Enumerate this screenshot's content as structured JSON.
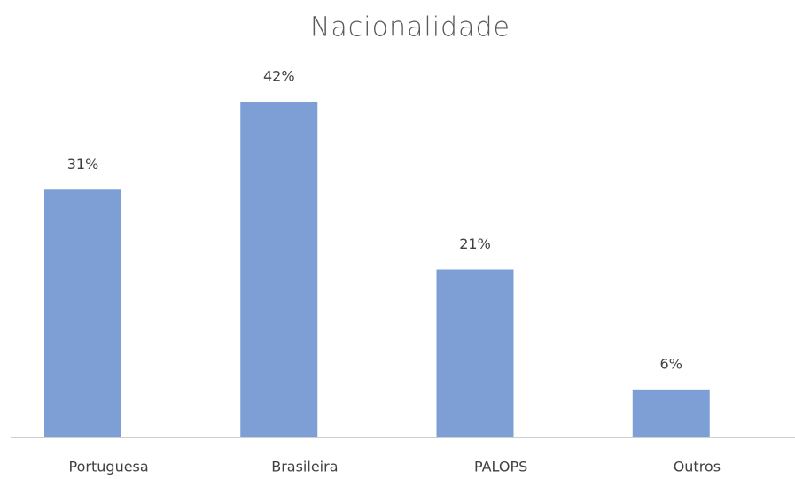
{
  "chart_data": {
    "type": "bar",
    "title": "Nacionalidade",
    "categories": [
      "Portuguesa",
      "Brasileira",
      "PALOPS",
      "Outros"
    ],
    "values": [
      31,
      42,
      21,
      6
    ],
    "value_labels": [
      "31%",
      "42%",
      "21%",
      "6%"
    ],
    "color": "#7d9fd6"
  }
}
